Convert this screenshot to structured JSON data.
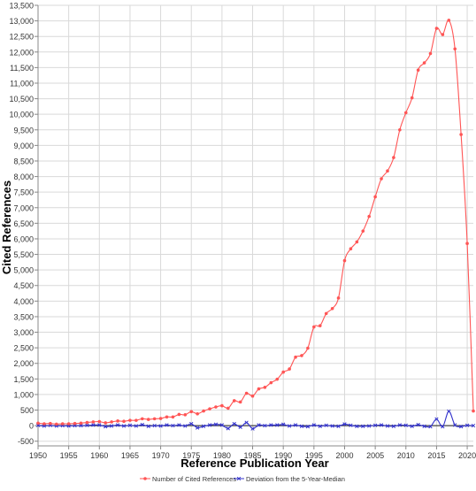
{
  "chart_data": {
    "type": "line",
    "title": "",
    "xlabel": "Reference Publication Year",
    "ylabel": "Cited References",
    "xlim": [
      1950,
      2021
    ],
    "ylim": [
      -650,
      13500
    ],
    "x_ticks": [
      1950,
      1955,
      1960,
      1965,
      1970,
      1975,
      1980,
      1985,
      1990,
      1995,
      2000,
      2005,
      2010,
      2015,
      2020
    ],
    "y_ticks": [
      -500,
      0,
      500,
      1000,
      1500,
      2000,
      2500,
      3000,
      3500,
      4000,
      4500,
      5000,
      5500,
      6000,
      6500,
      7000,
      7500,
      8000,
      8500,
      9000,
      9500,
      10000,
      10500,
      11000,
      11500,
      12000,
      12500,
      13000,
      13500
    ],
    "grid": true,
    "legend_position": "bottom-center",
    "series": [
      {
        "name": "Number of Cited References",
        "color": "#ff5555",
        "marker": "dot",
        "x": [
          1950,
          1951,
          1952,
          1953,
          1954,
          1955,
          1956,
          1957,
          1958,
          1959,
          1960,
          1961,
          1962,
          1963,
          1964,
          1965,
          1966,
          1967,
          1968,
          1969,
          1970,
          1971,
          1972,
          1973,
          1974,
          1975,
          1976,
          1977,
          1978,
          1979,
          1980,
          1981,
          1982,
          1983,
          1984,
          1985,
          1986,
          1987,
          1988,
          1989,
          1990,
          1991,
          1992,
          1993,
          1994,
          1995,
          1996,
          1997,
          1998,
          1999,
          2000,
          2001,
          2002,
          2003,
          2004,
          2005,
          2006,
          2007,
          2008,
          2009,
          2010,
          2011,
          2012,
          2013,
          2014,
          2015,
          2016,
          2017,
          2018,
          2019,
          2020,
          2021
        ],
        "values": [
          80,
          60,
          70,
          50,
          60,
          60,
          70,
          80,
          100,
          120,
          130,
          90,
          120,
          150,
          140,
          170,
          170,
          220,
          200,
          220,
          230,
          280,
          280,
          360,
          350,
          450,
          380,
          470,
          540,
          600,
          640,
          560,
          800,
          760,
          1040,
          950,
          1180,
          1230,
          1380,
          1490,
          1720,
          1820,
          2200,
          2250,
          2490,
          3170,
          3210,
          3600,
          3760,
          4100,
          5300,
          5680,
          5900,
          6250,
          6720,
          7350,
          7930,
          8180,
          8610,
          9500,
          10050,
          10530,
          11420,
          11650,
          11950,
          12760,
          12560,
          13020,
          12100,
          9350,
          5850,
          470
        ]
      },
      {
        "name": "Deviation from the 5-Year-Median",
        "color": "#3333cc",
        "marker": "cross",
        "x": [
          1950,
          1951,
          1952,
          1953,
          1954,
          1955,
          1956,
          1957,
          1958,
          1959,
          1960,
          1961,
          1962,
          1963,
          1964,
          1965,
          1966,
          1967,
          1968,
          1969,
          1970,
          1971,
          1972,
          1973,
          1974,
          1975,
          1976,
          1977,
          1978,
          1979,
          1980,
          1981,
          1982,
          1983,
          1984,
          1985,
          1986,
          1987,
          1988,
          1989,
          1990,
          1991,
          1992,
          1993,
          1994,
          1995,
          1996,
          1997,
          1998,
          1999,
          2000,
          2001,
          2002,
          2003,
          2004,
          2005,
          2006,
          2007,
          2008,
          2009,
          2010,
          2011,
          2012,
          2013,
          2014,
          2015,
          2016,
          2017,
          2018,
          2019,
          2020,
          2021
        ],
        "values": [
          10,
          -10,
          10,
          -10,
          0,
          -10,
          0,
          0,
          10,
          20,
          20,
          -30,
          -10,
          20,
          -10,
          10,
          -10,
          30,
          -20,
          0,
          -10,
          20,
          0,
          20,
          -10,
          60,
          -70,
          -20,
          20,
          40,
          20,
          -90,
          60,
          -50,
          100,
          -100,
          20,
          0,
          20,
          20,
          40,
          -10,
          20,
          -20,
          -30,
          20,
          -20,
          10,
          -10,
          -20,
          50,
          10,
          -20,
          -20,
          -10,
          10,
          20,
          -10,
          -20,
          20,
          10,
          -20,
          30,
          -20,
          -30,
          210,
          -30,
          460,
          20,
          -30,
          10,
          0
        ]
      }
    ]
  }
}
